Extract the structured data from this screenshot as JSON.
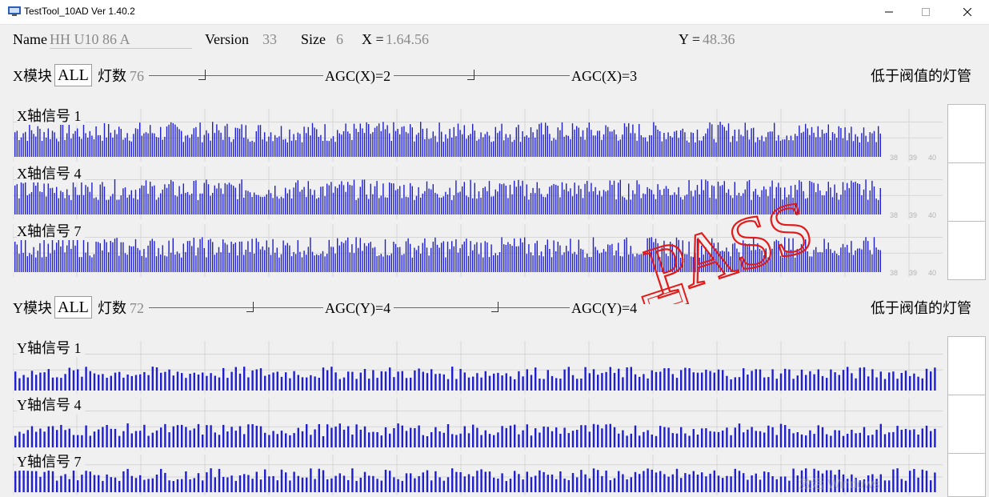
{
  "window": {
    "title": "TestTool_10AD   Ver 1.40.2",
    "controls": [
      "minimize-icon",
      "maximize-icon",
      "close-icon"
    ]
  },
  "info": {
    "name_label": "Name",
    "name_value": "HH U10 86 A",
    "version_label": "Version",
    "version_value": "33",
    "size_label": "Size",
    "size_value": "6",
    "x_label": "X =",
    "x_value": "1.64.56",
    "y_label": "Y =",
    "y_value": "48.36"
  },
  "x_module": {
    "module_label": "X模块",
    "module_value": "ALL",
    "lamp_label": "灯数",
    "lamp_value": "76",
    "agc1_label": "AGC(X)=2",
    "agc2_label": "AGC(X)=3",
    "threshold_label": "低于阀值的灯管"
  },
  "x_signals": [
    {
      "label": "X轴信号 1",
      "ticks": [
        "38",
        "39",
        "40"
      ]
    },
    {
      "label": "X轴信号 4",
      "ticks": [
        "38",
        "39",
        "40"
      ]
    },
    {
      "label": "X轴信号 7",
      "ticks": [
        "38",
        "39",
        "40"
      ]
    }
  ],
  "y_module": {
    "module_label": "Y模块",
    "module_value": "ALL",
    "lamp_label": "灯数",
    "lamp_value": "72",
    "agc1_label": "AGC(Y)=4",
    "agc2_label": "AGC(Y)=4",
    "threshold_label": "低于阀值的灯管"
  },
  "y_signals": [
    {
      "label": "Y轴信号 1"
    },
    {
      "label": "Y轴信号 4"
    },
    {
      "label": "Y轴信号 7"
    }
  ],
  "stamp": {
    "text": "PASS",
    "color": "#e11b1b"
  },
  "colors": {
    "bar": "#1f1fd0",
    "grid": "#d6d6d6"
  },
  "watermark": "激活 Windows"
}
